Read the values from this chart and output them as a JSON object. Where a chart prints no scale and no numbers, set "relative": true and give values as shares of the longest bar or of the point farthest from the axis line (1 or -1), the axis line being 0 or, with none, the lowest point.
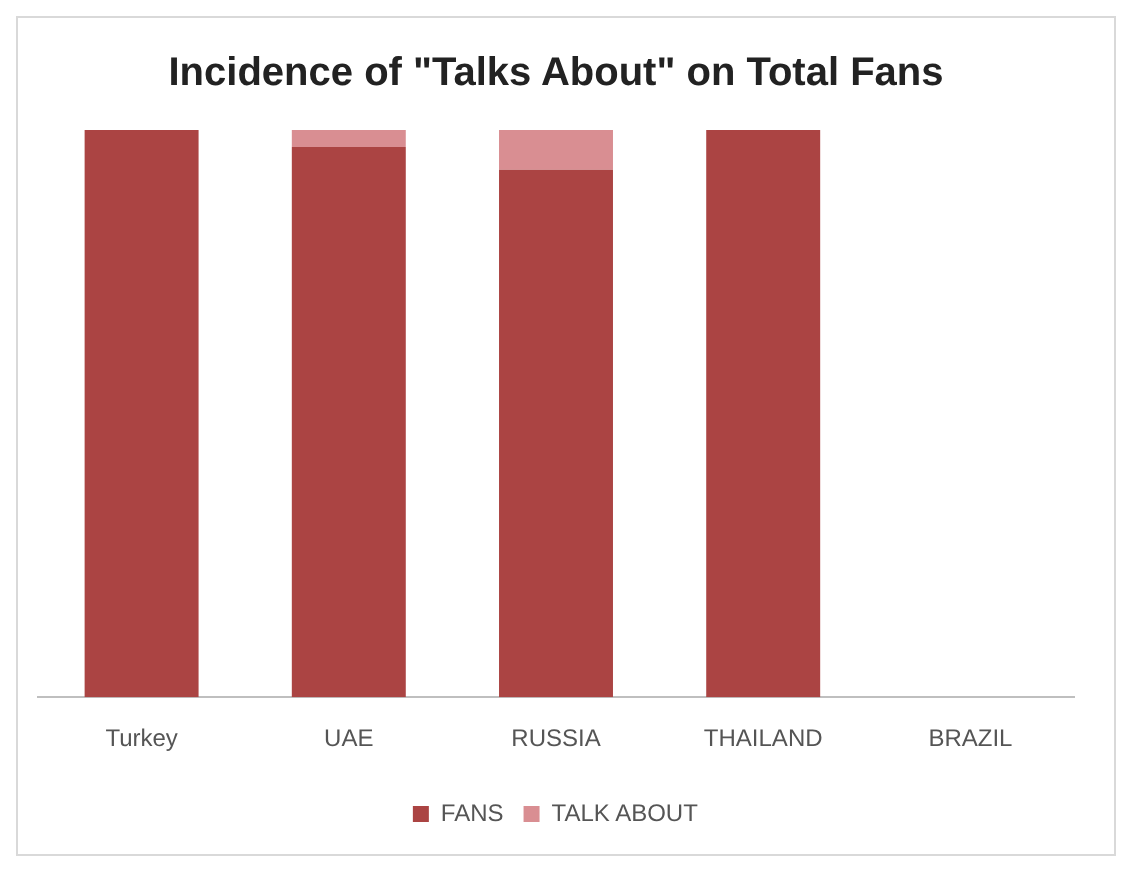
{
  "chart_data": {
    "type": "bar",
    "title": "Incidence of \"Talks About\" on Total Fans",
    "categories": [
      "Turkey",
      "UAE",
      "RUSSIA",
      "THAILAND",
      "BRAZIL"
    ],
    "stacked": true,
    "relative": true,
    "legend": "bottom",
    "grid": false,
    "series": [
      {
        "name": "FANS",
        "color": "#ab4443",
        "values": [
          1,
          0.97,
          0.93,
          1,
          null
        ]
      },
      {
        "name": "TALK ABOUT",
        "color": "#d98e92",
        "values": [
          0,
          0.03,
          0.07,
          0,
          null
        ]
      }
    ]
  }
}
